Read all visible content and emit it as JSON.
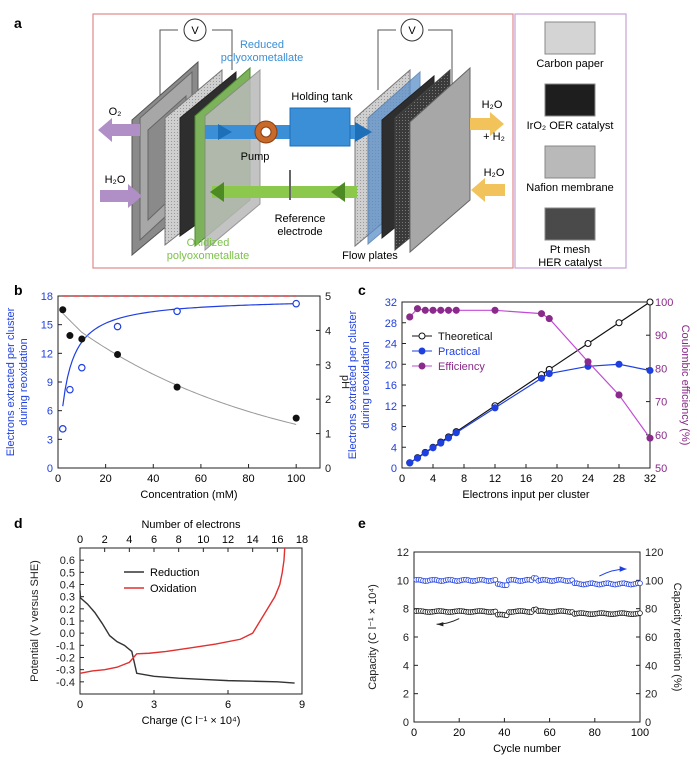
{
  "panel_a": {
    "label": "a",
    "labels": {
      "reduced": [
        "Reduced",
        "polyoxometallate"
      ],
      "holding_tank": "Holding tank",
      "pump": "Pump",
      "o2": "O₂",
      "h2o_left": "H₂O",
      "h2o_h2": [
        "H₂O",
        "+ H₂"
      ],
      "h2o_right": "H₂O",
      "reference": [
        "Reference",
        "electrode"
      ],
      "oxidized": [
        "Oxidized",
        "polyoxometallate"
      ],
      "flow_plates": "Flow plates",
      "voltmeter": "V"
    },
    "legend": [
      {
        "label": "Carbon paper",
        "fill": "#d4d4d4"
      },
      {
        "label": "IrO₂ OER catalyst",
        "fill": "#1e1e1e"
      },
      {
        "label": "Nafion membrane",
        "fill": "#b9b9b9"
      },
      {
        "label": "Pt mesh HER catalyst",
        "fill": "#4a4a4a"
      }
    ],
    "colors": {
      "reduced": "#3a8fd6",
      "oxidized": "#7cc24a",
      "o2_arrow": "#b08fc7",
      "h2_arrow": "#f1c35a",
      "frame": "#e08a8a"
    }
  },
  "chart_data": [
    {
      "id": "b",
      "type": "scatter",
      "xlabel": "Concentration (mM)",
      "ylabel": [
        "Electrons extracted per cluster",
        "during reoxidation"
      ],
      "y2label": "pH",
      "xlim": [
        0,
        110
      ],
      "ylim": [
        0,
        18
      ],
      "y2lim": [
        0,
        5
      ],
      "xticks": [
        0,
        20,
        40,
        60,
        80,
        100
      ],
      "yticks": [
        0,
        3,
        6,
        9,
        12,
        15,
        18
      ],
      "y2ticks": [
        0,
        1,
        2,
        3,
        4,
        5
      ],
      "reference_line": 18,
      "series": [
        {
          "name": "Electrons extracted",
          "axis": "left",
          "color": "#1f3fe0",
          "marker": "open",
          "x": [
            2,
            5,
            10,
            25,
            50,
            100
          ],
          "y": [
            4.1,
            8.2,
            10.5,
            14.8,
            16.4,
            17.2
          ]
        },
        {
          "name": "pH",
          "axis": "right",
          "color": "#111111",
          "marker": "filled",
          "x": [
            2,
            5,
            10,
            25,
            50,
            100
          ],
          "y": [
            4.6,
            3.85,
            3.75,
            3.3,
            2.35,
            1.45
          ]
        }
      ]
    },
    {
      "id": "c",
      "type": "line",
      "xlabel": "Electrons input per cluster",
      "ylabel": [
        "Electrons extracted per cluster",
        "during reoxidation"
      ],
      "y2label": "Coulombic efficiency (%)",
      "xlim": [
        0,
        32
      ],
      "ylim": [
        0,
        32
      ],
      "y2lim": [
        50,
        100
      ],
      "xticks": [
        0,
        4,
        8,
        12,
        16,
        20,
        24,
        28,
        32
      ],
      "yticks": [
        0,
        4,
        8,
        12,
        16,
        20,
        24,
        28,
        32
      ],
      "y2ticks": [
        50,
        60,
        70,
        80,
        90,
        100
      ],
      "series": [
        {
          "name": "Theoretical",
          "axis": "left",
          "color": "#111111",
          "marker": "open",
          "x": [
            1,
            2,
            3,
            4,
            5,
            6,
            7,
            12,
            18,
            19,
            24,
            28,
            32
          ],
          "y": [
            1,
            2,
            3,
            4,
            5,
            6,
            7,
            12,
            18,
            19,
            24,
            28,
            32
          ]
        },
        {
          "name": "Practical",
          "axis": "left",
          "color": "#1f3fe0",
          "marker": "filled",
          "x": [
            1,
            2,
            3,
            4,
            5,
            6,
            7,
            12,
            18,
            19,
            24,
            28,
            32
          ],
          "y": [
            1,
            1.9,
            2.9,
            3.9,
            4.8,
            5.8,
            6.8,
            11.6,
            17.3,
            18.2,
            19.6,
            20.0,
            18.8
          ]
        },
        {
          "name": "Efficiency",
          "axis": "right",
          "color": "#8a2a8a",
          "line_color": "#c24ad6",
          "marker": "filled",
          "x": [
            1,
            2,
            3,
            4,
            5,
            6,
            7,
            12,
            18,
            19,
            24,
            28,
            32
          ],
          "y": [
            95.5,
            98,
            97.5,
            97.5,
            97.5,
            97.5,
            97.5,
            97.5,
            96.5,
            95,
            82,
            72,
            59
          ]
        }
      ],
      "legend": [
        "Theoretical",
        "Practical",
        "Efficiency"
      ]
    },
    {
      "id": "d",
      "type": "line",
      "xlabel": "Charge (C l⁻¹ × 10⁴)",
      "ylabel": "Potential (V versus SHE)",
      "x2label": "Number of electrons",
      "xlim": [
        0,
        9
      ],
      "ylim": [
        -0.5,
        0.7
      ],
      "x2lim": [
        0,
        18
      ],
      "xticks": [
        0,
        3,
        6,
        9
      ],
      "x2ticks": [
        0,
        2,
        4,
        6,
        8,
        10,
        12,
        14,
        16,
        18
      ],
      "yticks": [
        -0.4,
        -0.3,
        -0.2,
        -0.1,
        0.0,
        0.1,
        0.2,
        0.3,
        0.4,
        0.5,
        0.6
      ],
      "ytick_labels": [
        "-0.4",
        "-0.3",
        "-0.2",
        "-0.1",
        "0.0",
        "0.1",
        "0.2",
        "0.3",
        "0.4",
        "0.5",
        "0.6"
      ],
      "series": [
        {
          "name": "Reduction",
          "color": "#333333",
          "x": [
            0,
            0.02,
            0.3,
            0.6,
            0.9,
            1.2,
            1.5,
            1.8,
            2.1,
            2.3,
            3,
            4,
            5,
            6,
            7,
            8,
            8.7
          ],
          "y": [
            0.35,
            0.29,
            0.24,
            0.17,
            0.08,
            -0.02,
            -0.07,
            -0.1,
            -0.15,
            -0.33,
            -0.355,
            -0.37,
            -0.38,
            -0.39,
            -0.395,
            -0.4,
            -0.41
          ]
        },
        {
          "name": "Oxidation",
          "color": "#e03030",
          "x": [
            0,
            0.5,
            1,
            1.5,
            2,
            2.3,
            2.8,
            3.5,
            4.5,
            5.5,
            6.5,
            7.0,
            7.3,
            7.6,
            7.9,
            8.1,
            8.2,
            8.27,
            8.3
          ],
          "y": [
            -0.33,
            -0.31,
            -0.3,
            -0.28,
            -0.24,
            -0.17,
            -0.165,
            -0.15,
            -0.12,
            -0.09,
            -0.05,
            0.0,
            0.1,
            0.2,
            0.3,
            0.4,
            0.5,
            0.6,
            0.7
          ]
        }
      ],
      "legend": [
        "Reduction",
        "Oxidation"
      ]
    },
    {
      "id": "e",
      "type": "scatter",
      "xlabel": "Cycle number",
      "ylabel": "Capacity (C l⁻¹ × 10⁴)",
      "y2label": "Capacity retention (%)",
      "xlim": [
        0,
        100
      ],
      "ylim": [
        0,
        12
      ],
      "y2lim": [
        0,
        120
      ],
      "xticks": [
        0,
        20,
        40,
        60,
        80,
        100
      ],
      "yticks": [
        0,
        2,
        4,
        6,
        8,
        10,
        12
      ],
      "y2ticks": [
        0,
        20,
        40,
        60,
        80,
        100,
        120
      ],
      "series": [
        {
          "name": "Capacity",
          "axis": "left",
          "color": "#111111",
          "marker": "open",
          "x_start": 1,
          "x_step": 1,
          "base": 7.8
        },
        {
          "name": "Capacity retention",
          "axis": "right",
          "color": "#1f3fe0",
          "marker": "open",
          "x_start": 1,
          "x_step": 1,
          "base": 100
        }
      ]
    }
  ],
  "panel_labels": {
    "b": "b",
    "c": "c",
    "d": "d",
    "e": "e"
  }
}
